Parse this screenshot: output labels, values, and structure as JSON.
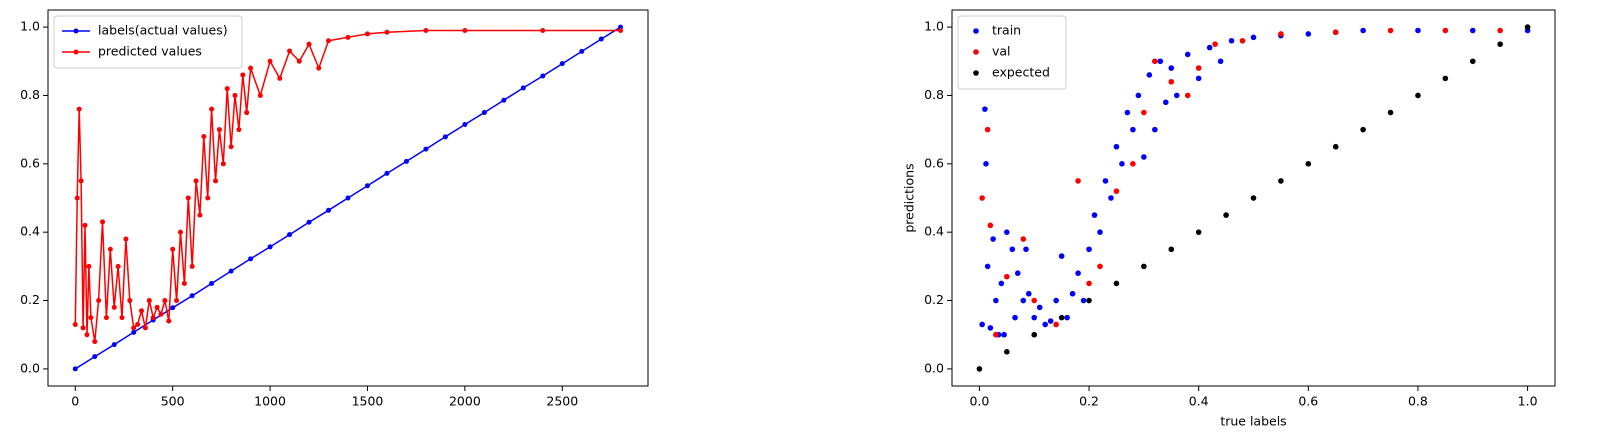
{
  "chart_data": [
    {
      "type": "line",
      "legend": "upper left",
      "xlim": [
        -140,
        2940
      ],
      "ylim": [
        -0.05,
        1.05
      ],
      "xticks": [
        0,
        500,
        1000,
        1500,
        2000,
        2500
      ],
      "yticks": [
        {
          "value": 0,
          "label": "0.0"
        },
        {
          "value": 0.2,
          "label": "0.2"
        },
        {
          "value": 0.4,
          "label": "0.4"
        },
        {
          "value": 0.6,
          "label": "0.6"
        },
        {
          "value": 0.8,
          "label": "0.8"
        },
        {
          "value": 1,
          "label": "1.0"
        }
      ],
      "series": [
        {
          "name": "labels(actual values)",
          "color": "#0000ff",
          "x": [
            0,
            100,
            200,
            300,
            400,
            500,
            600,
            700,
            800,
            900,
            1000,
            1100,
            1200,
            1300,
            1400,
            1500,
            1600,
            1700,
            1800,
            1900,
            2000,
            2100,
            2200,
            2300,
            2400,
            2500,
            2600,
            2700,
            2799
          ],
          "values": [
            0,
            0.036,
            0.071,
            0.107,
            0.143,
            0.179,
            0.214,
            0.25,
            0.286,
            0.322,
            0.357,
            0.393,
            0.429,
            0.464,
            0.5,
            0.536,
            0.572,
            0.607,
            0.643,
            0.679,
            0.715,
            0.75,
            0.786,
            0.822,
            0.857,
            0.893,
            0.929,
            0.965,
            1
          ]
        },
        {
          "name": "predicted values",
          "color": "#ff0000",
          "x": [
            0,
            10,
            20,
            30,
            40,
            50,
            60,
            70,
            80,
            100,
            120,
            140,
            160,
            180,
            200,
            220,
            240,
            260,
            280,
            300,
            320,
            340,
            360,
            380,
            400,
            420,
            440,
            460,
            480,
            500,
            520,
            540,
            560,
            580,
            600,
            620,
            640,
            660,
            680,
            700,
            720,
            740,
            760,
            780,
            800,
            820,
            840,
            860,
            880,
            900,
            950,
            1000,
            1050,
            1100,
            1150,
            1200,
            1250,
            1300,
            1400,
            1500,
            1600,
            1800,
            2000,
            2400,
            2799
          ],
          "values": [
            0.13,
            0.5,
            0.76,
            0.55,
            0.12,
            0.42,
            0.1,
            0.3,
            0.15,
            0.08,
            0.2,
            0.43,
            0.15,
            0.35,
            0.18,
            0.3,
            0.15,
            0.38,
            0.2,
            0.12,
            0.13,
            0.17,
            0.12,
            0.2,
            0.15,
            0.18,
            0.16,
            0.2,
            0.14,
            0.35,
            0.2,
            0.4,
            0.25,
            0.5,
            0.3,
            0.55,
            0.45,
            0.68,
            0.5,
            0.76,
            0.55,
            0.7,
            0.6,
            0.82,
            0.65,
            0.8,
            0.7,
            0.86,
            0.75,
            0.88,
            0.8,
            0.9,
            0.85,
            0.93,
            0.9,
            0.95,
            0.88,
            0.96,
            0.97,
            0.98,
            0.985,
            0.99,
            0.99,
            0.99,
            0.99
          ]
        }
      ]
    },
    {
      "type": "scatter",
      "legend": "upper left",
      "x_label": "true labels",
      "y_label": "predictions",
      "xlim": [
        -0.05,
        1.05
      ],
      "ylim": [
        -0.05,
        1.05
      ],
      "xticks": [
        {
          "value": 0,
          "label": "0.0"
        },
        {
          "value": 0.2,
          "label": "0.2"
        },
        {
          "value": 0.4,
          "label": "0.4"
        },
        {
          "value": 0.6,
          "label": "0.6"
        },
        {
          "value": 0.8,
          "label": "0.8"
        },
        {
          "value": 1,
          "label": "1.0"
        }
      ],
      "yticks": [
        {
          "value": 0,
          "label": "0.0"
        },
        {
          "value": 0.2,
          "label": "0.2"
        },
        {
          "value": 0.4,
          "label": "0.4"
        },
        {
          "value": 0.6,
          "label": "0.6"
        },
        {
          "value": 0.8,
          "label": "0.8"
        },
        {
          "value": 1,
          "label": "1.0"
        }
      ],
      "series": [
        {
          "name": "train",
          "color": "#0000ff",
          "x": [
            0.005,
            0.01,
            0.012,
            0.015,
            0.02,
            0.025,
            0.03,
            0.035,
            0.04,
            0.045,
            0.05,
            0.06,
            0.065,
            0.07,
            0.08,
            0.085,
            0.09,
            0.1,
            0.11,
            0.12,
            0.13,
            0.14,
            0.15,
            0.16,
            0.17,
            0.18,
            0.19,
            0.2,
            0.21,
            0.22,
            0.23,
            0.24,
            0.25,
            0.26,
            0.27,
            0.28,
            0.29,
            0.3,
            0.31,
            0.32,
            0.33,
            0.34,
            0.35,
            0.36,
            0.38,
            0.4,
            0.42,
            0.44,
            0.46,
            0.5,
            0.55,
            0.6,
            0.65,
            0.7,
            0.8,
            0.9,
            1
          ],
          "values": [
            0.13,
            0.76,
            0.6,
            0.3,
            0.12,
            0.38,
            0.2,
            0.1,
            0.25,
            0.1,
            0.4,
            0.35,
            0.15,
            0.28,
            0.2,
            0.35,
            0.22,
            0.15,
            0.18,
            0.13,
            0.14,
            0.2,
            0.33,
            0.15,
            0.22,
            0.28,
            0.2,
            0.35,
            0.45,
            0.4,
            0.55,
            0.5,
            0.65,
            0.6,
            0.75,
            0.7,
            0.8,
            0.62,
            0.86,
            0.7,
            0.9,
            0.78,
            0.88,
            0.8,
            0.92,
            0.85,
            0.94,
            0.9,
            0.96,
            0.97,
            0.975,
            0.98,
            0.985,
            0.99,
            0.99,
            0.99,
            0.99
          ]
        },
        {
          "name": "val",
          "color": "#ff0000",
          "x": [
            0.005,
            0.015,
            0.02,
            0.03,
            0.05,
            0.08,
            0.1,
            0.14,
            0.18,
            0.2,
            0.22,
            0.25,
            0.28,
            0.3,
            0.32,
            0.35,
            0.38,
            0.4,
            0.43,
            0.48,
            0.55,
            0.65,
            0.75,
            0.85,
            0.95
          ],
          "values": [
            0.5,
            0.7,
            0.42,
            0.1,
            0.27,
            0.38,
            0.2,
            0.13,
            0.55,
            0.25,
            0.3,
            0.52,
            0.6,
            0.75,
            0.9,
            0.84,
            0.8,
            0.88,
            0.95,
            0.96,
            0.98,
            0.985,
            0.99,
            0.99,
            0.99
          ]
        },
        {
          "name": "expected",
          "color": "#000000",
          "x": [
            0,
            0.05,
            0.1,
            0.15,
            0.2,
            0.25,
            0.3,
            0.35,
            0.4,
            0.45,
            0.5,
            0.55,
            0.6,
            0.65,
            0.7,
            0.75,
            0.8,
            0.85,
            0.9,
            0.95,
            1
          ],
          "values": [
            0,
            0.05,
            0.1,
            0.15,
            0.2,
            0.25,
            0.3,
            0.35,
            0.4,
            0.45,
            0.5,
            0.55,
            0.6,
            0.65,
            0.7,
            0.75,
            0.8,
            0.85,
            0.9,
            0.95,
            1
          ]
        }
      ]
    }
  ]
}
